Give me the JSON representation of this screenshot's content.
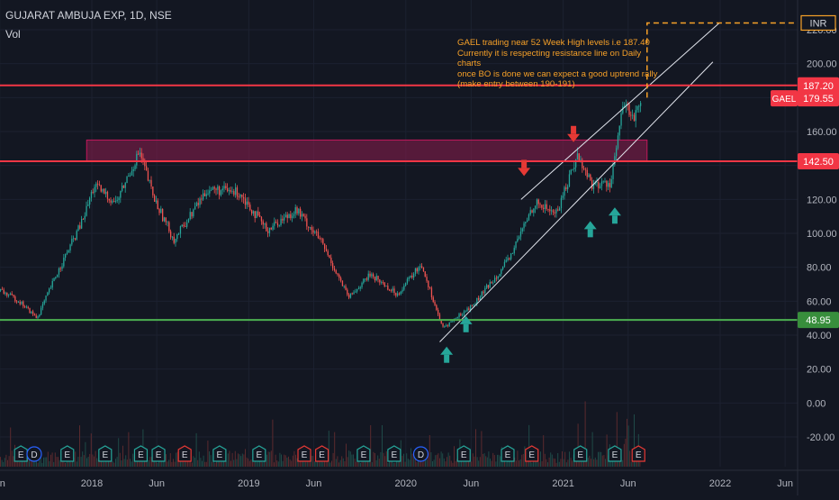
{
  "header": {
    "symbol_title": "GUJARAT AMBUJA EXP, 1D, NSE",
    "volume_label": "Vol",
    "currency": "INR"
  },
  "annotation": {
    "lines": [
      "GAEL trading near 52 Week High levels i.e 187.40",
      "Currently it is respecting resistance line on Daily charts",
      "once BO is done we can expect a good uptrend rally",
      "(make entry between 190-191)"
    ]
  },
  "colors": {
    "background": "#131722",
    "up": "#26a69a",
    "down": "#ef5350",
    "resistance": "#f23645",
    "support": "#4caf50",
    "zone": "#8e1d4f",
    "annotation": "#f7a128",
    "trendline": "#e0e3eb"
  },
  "chart_data": {
    "type": "candlestick",
    "symbol": "GAEL",
    "title": "GUJARAT AMBUJA EXP, 1D, NSE",
    "ylim": [
      -40,
      230
    ],
    "y_ticks": [
      220,
      200,
      180,
      160,
      140,
      120,
      100,
      80,
      60,
      40,
      20,
      0,
      -20
    ],
    "y_tick_labels": [
      "220.00",
      "200.00",
      "180.00",
      "160.00",
      "140.00",
      "120.00",
      "100.00",
      "80.00",
      "60.00",
      "40.00",
      "20.00",
      "0.00",
      "-20.00"
    ],
    "x_ticks": [
      {
        "label": "un",
        "date": "2017-06-01"
      },
      {
        "label": "2018",
        "date": "2018-01-01"
      },
      {
        "label": "Jun",
        "date": "2018-06-01"
      },
      {
        "label": "2019",
        "date": "2019-01-01"
      },
      {
        "label": "Jun",
        "date": "2019-06-01"
      },
      {
        "label": "2020",
        "date": "2020-01-01"
      },
      {
        "label": "Jun",
        "date": "2020-06-01"
      },
      {
        "label": "2021",
        "date": "2021-01-01"
      },
      {
        "label": "Jun",
        "date": "2021-06-01"
      },
      {
        "label": "2022",
        "date": "2022-01-01"
      },
      {
        "label": "Jun",
        "date": "2022-06-01"
      }
    ],
    "horizontal_levels": [
      {
        "value": 187.2,
        "label": "187.20",
        "role": "resistance"
      },
      {
        "value": 142.5,
        "label": "142.50",
        "role": "resistance"
      },
      {
        "value": 48.95,
        "label": "48.95",
        "role": "support"
      }
    ],
    "last_price": {
      "symbol": "GAEL",
      "value": 179.55,
      "label": "179.55"
    },
    "target_level": {
      "value": 224,
      "label": "INR"
    },
    "resistance_zone": {
      "from": "2017-12-20",
      "to": "2021-07-15",
      "low": 142.5,
      "high": 155
    },
    "trend_channel": [
      {
        "from": {
          "date": "2020-03-20",
          "value": 36
        },
        "to": {
          "date": "2021-12-15",
          "value": 201
        }
      },
      {
        "from": {
          "date": "2020-09-25",
          "value": 120
        },
        "to": {
          "date": "2021-12-30",
          "value": 224
        }
      }
    ],
    "price_path": [
      {
        "date": "2017-05-20",
        "value": 68
      },
      {
        "date": "2017-07-15",
        "value": 60
      },
      {
        "date": "2017-08-25",
        "value": 50
      },
      {
        "date": "2017-10-10",
        "value": 76
      },
      {
        "date": "2017-12-10",
        "value": 108
      },
      {
        "date": "2018-01-05",
        "value": 128
      },
      {
        "date": "2018-02-25",
        "value": 118
      },
      {
        "date": "2018-04-20",
        "value": 148
      },
      {
        "date": "2018-05-25",
        "value": 120
      },
      {
        "date": "2018-07-10",
        "value": 96
      },
      {
        "date": "2018-09-25",
        "value": 126
      },
      {
        "date": "2018-12-10",
        "value": 124
      },
      {
        "date": "2019-02-10",
        "value": 102
      },
      {
        "date": "2019-04-20",
        "value": 114
      },
      {
        "date": "2019-06-15",
        "value": 96
      },
      {
        "date": "2019-08-20",
        "value": 62
      },
      {
        "date": "2019-10-10",
        "value": 76
      },
      {
        "date": "2019-12-10",
        "value": 64
      },
      {
        "date": "2020-02-05",
        "value": 82
      },
      {
        "date": "2020-03-25",
        "value": 44
      },
      {
        "date": "2020-06-05",
        "value": 58
      },
      {
        "date": "2020-08-25",
        "value": 84
      },
      {
        "date": "2020-10-25",
        "value": 118
      },
      {
        "date": "2020-12-15",
        "value": 112
      },
      {
        "date": "2021-02-01",
        "value": 146
      },
      {
        "date": "2021-03-10",
        "value": 128
      },
      {
        "date": "2021-04-20",
        "value": 130
      },
      {
        "date": "2021-05-20",
        "value": 176
      },
      {
        "date": "2021-06-15",
        "value": 168
      },
      {
        "date": "2021-07-10",
        "value": 181
      }
    ],
    "down_arrows": [
      {
        "date": "2020-10-02",
        "value": 138
      },
      {
        "date": "2021-01-25",
        "value": 158
      }
    ],
    "up_arrows": [
      {
        "date": "2020-04-05",
        "value": 29
      },
      {
        "date": "2020-05-20",
        "value": 47
      },
      {
        "date": "2021-03-05",
        "value": 103
      },
      {
        "date": "2021-05-01",
        "value": 111
      }
    ],
    "event_markers": [
      {
        "date": "2017-07-20",
        "letter": "E",
        "kind": "earnings"
      },
      {
        "date": "2017-08-20",
        "letter": "D",
        "kind": "dividend"
      },
      {
        "date": "2017-11-05",
        "letter": "E",
        "kind": "earnings"
      },
      {
        "date": "2018-02-01",
        "letter": "E",
        "kind": "earnings"
      },
      {
        "date": "2018-04-25",
        "letter": "E",
        "kind": "earnings"
      },
      {
        "date": "2018-06-05",
        "letter": "E",
        "kind": "earnings"
      },
      {
        "date": "2018-08-05",
        "letter": "E",
        "kind": "earnings-miss"
      },
      {
        "date": "2018-10-25",
        "letter": "E",
        "kind": "earnings"
      },
      {
        "date": "2019-01-25",
        "letter": "E",
        "kind": "earnings"
      },
      {
        "date": "2019-05-10",
        "letter": "E",
        "kind": "earnings-miss"
      },
      {
        "date": "2019-06-20",
        "letter": "E",
        "kind": "earnings-miss"
      },
      {
        "date": "2019-09-25",
        "letter": "E",
        "kind": "earnings"
      },
      {
        "date": "2019-12-05",
        "letter": "E",
        "kind": "earnings"
      },
      {
        "date": "2020-02-05",
        "letter": "D",
        "kind": "dividend"
      },
      {
        "date": "2020-05-15",
        "letter": "E",
        "kind": "earnings"
      },
      {
        "date": "2020-08-25",
        "letter": "E",
        "kind": "earnings"
      },
      {
        "date": "2020-10-20",
        "letter": "E",
        "kind": "earnings-miss"
      },
      {
        "date": "2021-02-10",
        "letter": "E",
        "kind": "earnings"
      },
      {
        "date": "2021-05-01",
        "letter": "E",
        "kind": "earnings"
      },
      {
        "date": "2021-06-25",
        "letter": "E",
        "kind": "earnings-miss"
      }
    ]
  }
}
